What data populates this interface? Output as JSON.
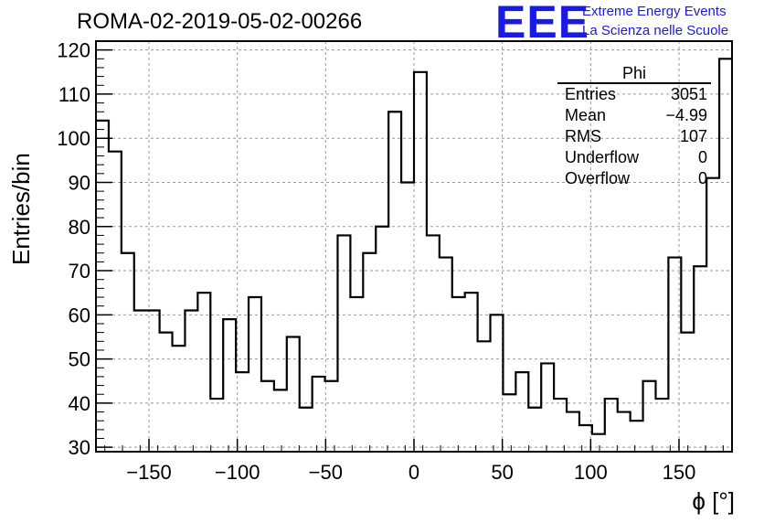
{
  "header": {
    "title": "ROMA-02-2019-05-02-00266",
    "logo_text": "EEE",
    "logo_line1": "Extreme Energy Events",
    "logo_line2": "La Scienza nelle Scuole"
  },
  "stats_box": {
    "name": "Phi",
    "rows": [
      {
        "label": "Entries",
        "value": "3051"
      },
      {
        "label": "Mean",
        "value": "−4.99"
      },
      {
        "label": "RMS",
        "value": "107"
      },
      {
        "label": "Underflow",
        "value": "0"
      },
      {
        "label": "Overflow",
        "value": "0"
      }
    ]
  },
  "colors": {
    "logo": "#1a1ae6",
    "line": "#000000",
    "grid": "#999999"
  },
  "chart_data": {
    "type": "bar",
    "style": "step-histogram",
    "xlabel": "ϕ [°]",
    "ylabel": "Entries/bin",
    "xlim": [
      -180,
      180
    ],
    "ylim": [
      29,
      122
    ],
    "bin_width": 7.2,
    "x_ticks": [
      -150,
      -100,
      -50,
      0,
      50,
      100,
      150
    ],
    "x_tick_labels": [
      "−150",
      "−100",
      "−50",
      "0",
      "50",
      "100",
      "150"
    ],
    "y_ticks": [
      30,
      40,
      50,
      60,
      70,
      80,
      90,
      100,
      110,
      120
    ],
    "grid": true,
    "values": [
      104,
      97,
      74,
      61,
      61,
      56,
      53,
      61,
      65,
      41,
      59,
      47,
      64,
      45,
      43,
      55,
      39,
      46,
      45,
      78,
      64,
      74,
      80,
      106,
      90,
      115,
      78,
      73,
      64,
      65,
      54,
      60,
      42,
      47,
      39,
      49,
      41,
      38,
      35,
      33,
      41,
      38,
      36,
      45,
      41,
      73,
      56,
      71,
      91,
      118
    ]
  }
}
